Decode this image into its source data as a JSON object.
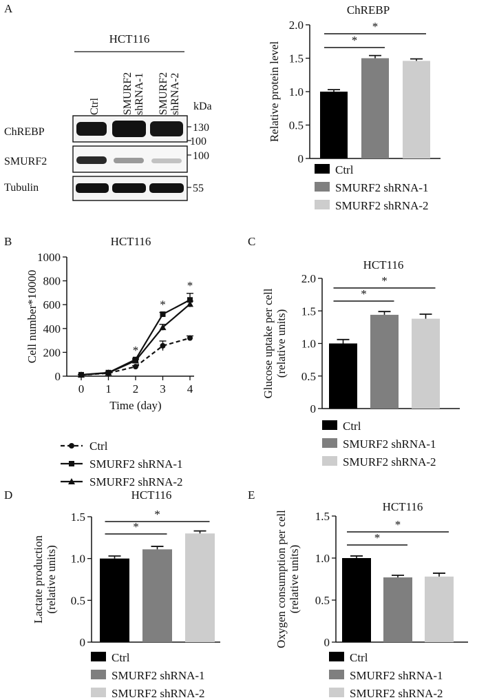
{
  "panel_letters": {
    "a": "A",
    "b": "B",
    "c": "C",
    "d": "D",
    "e": "E"
  },
  "blot": {
    "cell_line": "HCT116",
    "lanes": [
      "Ctrl",
      "SMURF2 shRNA-1",
      "SMURF2 shRNA-2"
    ],
    "kda_label": "kDa",
    "rows": [
      {
        "name": "ChREBP",
        "markers": [
          "130",
          "100"
        ]
      },
      {
        "name": "SMURF2",
        "markers": [
          "100"
        ]
      },
      {
        "name": "Tubulin",
        "markers": [
          "55"
        ]
      }
    ]
  },
  "legend_labels": [
    "Ctrl",
    "SMURF2 shRNA-1",
    "SMURF2 shRNA-2"
  ],
  "colors": {
    "ctrl": "#000000",
    "sh1": "#7f7f7f",
    "sh2": "#cdcdcd"
  },
  "chart_data": [
    {
      "panel": "A",
      "type": "bar",
      "title": "ChREBP",
      "ylabel": "Relative protein level",
      "categories": [
        "Ctrl",
        "SMURF2 shRNA-1",
        "SMURF2 shRNA-2"
      ],
      "values": [
        1.0,
        1.5,
        1.46
      ],
      "errors": [
        0.03,
        0.04,
        0.03
      ],
      "ylim": [
        0,
        2.0
      ],
      "yticks": [
        "0",
        "0.5",
        "1.0",
        "1.5",
        "2.0"
      ],
      "significance": [
        "*",
        "*"
      ],
      "legend": [
        "Ctrl",
        "SMURF2 shRNA-1",
        "SMURF2 shRNA-2"
      ]
    },
    {
      "panel": "B",
      "type": "line",
      "title": "HCT116",
      "xlabel": "Time (day)",
      "ylabel": "Cell number*10000",
      "x": [
        0,
        1,
        2,
        3,
        4
      ],
      "xticks": [
        "0",
        "1",
        "2",
        "3",
        "4"
      ],
      "ylim": [
        0,
        1000
      ],
      "yticks": [
        "0",
        "200",
        "400",
        "600",
        "800",
        "1000"
      ],
      "series": [
        {
          "name": "Ctrl",
          "values": [
            10,
            25,
            80,
            255,
            320
          ],
          "errors": [
            3,
            4,
            8,
            40,
            18
          ]
        },
        {
          "name": "SMURF2 shRNA-1",
          "values": [
            12,
            30,
            140,
            520,
            640
          ],
          "errors": [
            3,
            4,
            10,
            15,
            55
          ]
        },
        {
          "name": "SMURF2 shRNA-2",
          "values": [
            11,
            28,
            130,
            410,
            605
          ],
          "errors": [
            3,
            4,
            10,
            25,
            25
          ]
        }
      ],
      "significance": [
        "*",
        "*",
        "*"
      ]
    },
    {
      "panel": "C",
      "type": "bar",
      "title": "HCT116",
      "ylabel_lines": [
        "Glucose uptake per cell",
        "(relative units)"
      ],
      "categories": [
        "Ctrl",
        "SMURF2 shRNA-1",
        "SMURF2 shRNA-2"
      ],
      "values": [
        1.0,
        1.44,
        1.38
      ],
      "errors": [
        0.06,
        0.05,
        0.07
      ],
      "ylim": [
        0,
        2.0
      ],
      "yticks": [
        "0",
        "0.5",
        "1.0",
        "1.5",
        "2.0"
      ],
      "significance": [
        "*",
        "*"
      ],
      "legend": [
        "Ctrl",
        "SMURF2 shRNA-1",
        "SMURF2 shRNA-2"
      ]
    },
    {
      "panel": "D",
      "type": "bar",
      "title": "HCT116",
      "ylabel_lines": [
        "Lactate production",
        "(relative units)"
      ],
      "categories": [
        "Ctrl",
        "SMURF2 shRNA-1",
        "SMURF2 shRNA-2"
      ],
      "values": [
        1.0,
        1.11,
        1.3
      ],
      "errors": [
        0.03,
        0.035,
        0.03
      ],
      "ylim": [
        0,
        1.5
      ],
      "yticks": [
        "0",
        "0.5",
        "1.0",
        "1.5"
      ],
      "significance": [
        "*",
        "*"
      ],
      "legend": [
        "Ctrl",
        "SMURF2 shRNA-1",
        "SMURF2 shRNA-2"
      ]
    },
    {
      "panel": "E",
      "type": "bar",
      "title": "HCT116",
      "ylabel_lines": [
        "Oxygen consumption per cell",
        "(relative units)"
      ],
      "categories": [
        "Ctrl",
        "SMURF2 shRNA-1",
        "SMURF2 shRNA-2"
      ],
      "values": [
        1.0,
        0.77,
        0.78
      ],
      "errors": [
        0.025,
        0.025,
        0.04
      ],
      "ylim": [
        0,
        1.5
      ],
      "yticks": [
        "0",
        "0.5",
        "1.0",
        "1.5"
      ],
      "significance": [
        "*",
        "*"
      ],
      "legend": [
        "Ctrl",
        "SMURF2 shRNA-1",
        "SMURF2 shRNA-2"
      ]
    }
  ]
}
